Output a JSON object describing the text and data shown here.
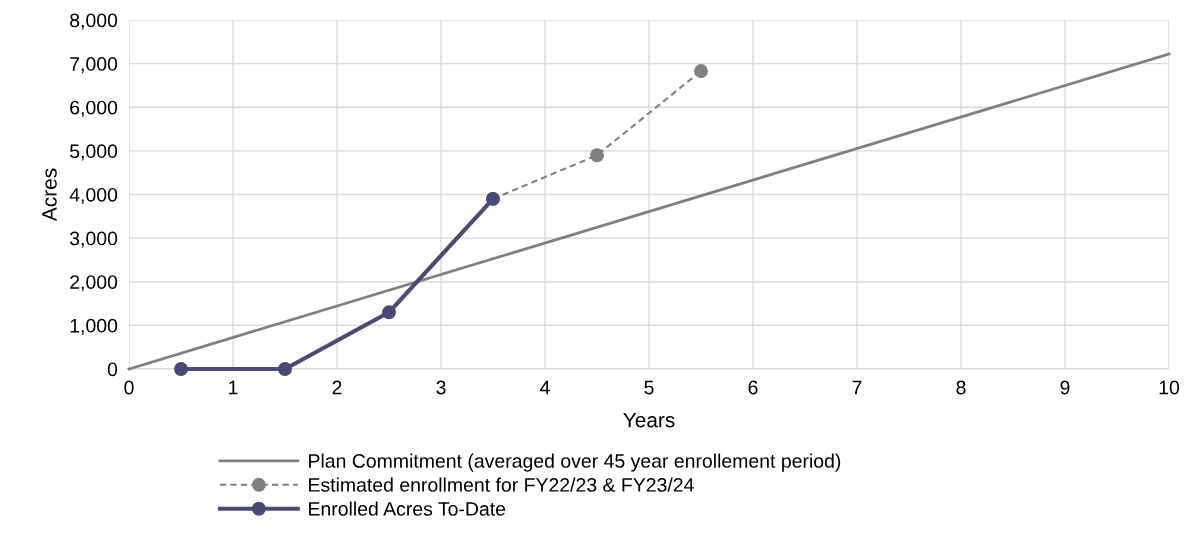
{
  "chart_data": {
    "type": "line",
    "xlabel": "Years",
    "ylabel": "Acres",
    "xlim": [
      0,
      10
    ],
    "xticks": [
      0,
      1,
      2,
      3,
      4,
      5,
      6,
      7,
      8,
      9,
      10
    ],
    "ylim": [
      0,
      8000
    ],
    "yticks": [
      {
        "value": 0,
        "label": "0"
      },
      {
        "value": 1000,
        "label": "1,000"
      },
      {
        "value": 2000,
        "label": "2,000"
      },
      {
        "value": 3000,
        "label": "3,000"
      },
      {
        "value": 4000,
        "label": "4,000"
      },
      {
        "value": 5000,
        "label": "5,000"
      },
      {
        "value": 6000,
        "label": "6,000"
      },
      {
        "value": 7000,
        "label": "7,000"
      },
      {
        "value": 8000,
        "label": "8,000"
      }
    ],
    "grid": true,
    "legend": "bottom",
    "series": [
      {
        "name": "Plan Commitment (averaged over 45 year enrollement period)",
        "color": "#808080",
        "x": [
          0,
          10
        ],
        "values": [
          0,
          7220
        ],
        "marker": "none",
        "line_style": "solid"
      },
      {
        "name": "Estimated enrollment for FY22/23 & FY23/24",
        "color": "#808080",
        "x": [
          3.5,
          4.5,
          5.5
        ],
        "values": [
          3900,
          4900,
          6830
        ],
        "marker": "circle",
        "line_style": "dashed"
      },
      {
        "name": "Enrolled Acres To-Date",
        "color": "#4a4a78",
        "x": [
          0.5,
          1.5,
          2.5,
          3.5
        ],
        "values": [
          0,
          0,
          1300,
          3900
        ],
        "marker": "circle",
        "line_style": "solid"
      }
    ]
  }
}
